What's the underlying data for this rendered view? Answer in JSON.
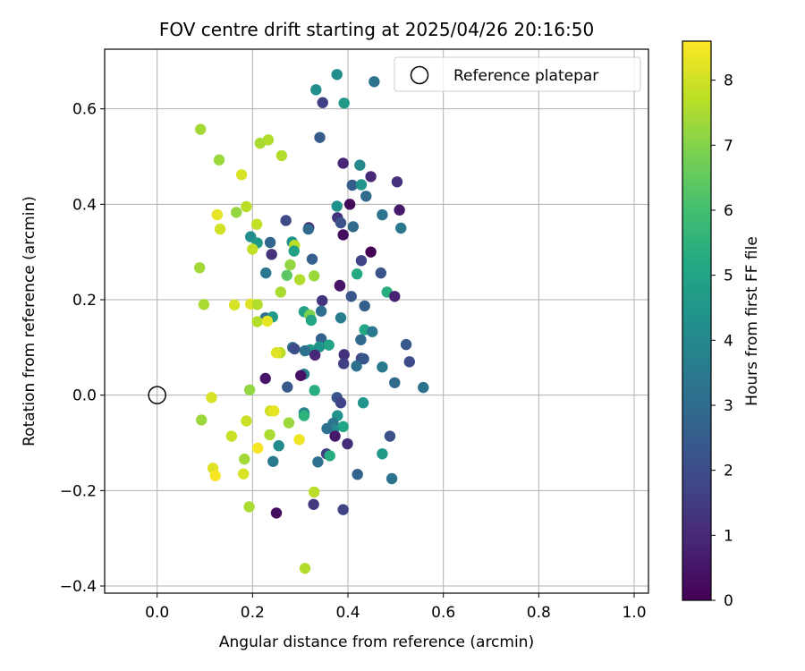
{
  "chart_data": {
    "type": "scatter",
    "title": "FOV centre drift starting at 2025/04/26 20:16:50",
    "xlabel": "Angular distance from reference (arcmin)",
    "ylabel": "Rotation from reference (arcmin)",
    "xlim": [
      -0.11,
      1.03
    ],
    "ylim": [
      -0.415,
      0.725
    ],
    "xticks": [
      0.0,
      0.2,
      0.4,
      0.6,
      0.8,
      1.0
    ],
    "xtick_labels": [
      "0.0",
      "0.2",
      "0.4",
      "0.6",
      "0.8",
      "1.0"
    ],
    "yticks": [
      -0.4,
      -0.2,
      0.0,
      0.2,
      0.4,
      0.6
    ],
    "ytick_labels": [
      "−0.4",
      "−0.2",
      "0.0",
      "0.2",
      "0.4",
      "0.6"
    ],
    "grid": true,
    "legend": {
      "placement": "top-right",
      "entries": [
        {
          "label": "Reference platepar",
          "marker": "open-circle"
        }
      ]
    },
    "reference_point": {
      "x": 0.0,
      "y": 0.0
    },
    "colorbar": {
      "label": "Hours from first FF file",
      "colormap": "viridis",
      "range": [
        0,
        8.6
      ],
      "ticks": [
        0,
        1,
        2,
        3,
        4,
        5,
        6,
        7,
        8
      ],
      "tick_labels": [
        "0",
        "1",
        "2",
        "3",
        "4",
        "5",
        "6",
        "7",
        "8"
      ]
    },
    "points": [
      {
        "x": 0.377,
        "y": 0.672,
        "h": 4.2
      },
      {
        "x": 0.455,
        "y": 0.657,
        "h": 3.3
      },
      {
        "x": 0.333,
        "y": 0.64,
        "h": 4.2
      },
      {
        "x": 0.347,
        "y": 0.613,
        "h": 1.6
      },
      {
        "x": 0.392,
        "y": 0.612,
        "h": 4.6
      },
      {
        "x": 0.341,
        "y": 0.54,
        "h": 2.5
      },
      {
        "x": 0.091,
        "y": 0.557,
        "h": 7.4
      },
      {
        "x": 0.233,
        "y": 0.535,
        "h": 7.6
      },
      {
        "x": 0.216,
        "y": 0.528,
        "h": 7.5
      },
      {
        "x": 0.13,
        "y": 0.493,
        "h": 7.3
      },
      {
        "x": 0.261,
        "y": 0.502,
        "h": 7.6
      },
      {
        "x": 0.39,
        "y": 0.486,
        "h": 0.9
      },
      {
        "x": 0.425,
        "y": 0.482,
        "h": 4.0
      },
      {
        "x": 0.177,
        "y": 0.462,
        "h": 8.1
      },
      {
        "x": 0.448,
        "y": 0.458,
        "h": 1.0
      },
      {
        "x": 0.503,
        "y": 0.447,
        "h": 1.2
      },
      {
        "x": 0.409,
        "y": 0.44,
        "h": 2.5
      },
      {
        "x": 0.428,
        "y": 0.441,
        "h": 4.5
      },
      {
        "x": 0.438,
        "y": 0.417,
        "h": 3.0
      },
      {
        "x": 0.187,
        "y": 0.395,
        "h": 7.7
      },
      {
        "x": 0.377,
        "y": 0.396,
        "h": 4.3
      },
      {
        "x": 0.404,
        "y": 0.4,
        "h": 0.2
      },
      {
        "x": 0.508,
        "y": 0.388,
        "h": 0.6
      },
      {
        "x": 0.472,
        "y": 0.378,
        "h": 3.3
      },
      {
        "x": 0.126,
        "y": 0.378,
        "h": 8.3
      },
      {
        "x": 0.166,
        "y": 0.383,
        "h": 7.2
      },
      {
        "x": 0.378,
        "y": 0.372,
        "h": 1.3
      },
      {
        "x": 0.385,
        "y": 0.361,
        "h": 2.2
      },
      {
        "x": 0.27,
        "y": 0.366,
        "h": 1.9
      },
      {
        "x": 0.209,
        "y": 0.358,
        "h": 7.8
      },
      {
        "x": 0.132,
        "y": 0.348,
        "h": 8.0
      },
      {
        "x": 0.318,
        "y": 0.351,
        "h": 0.7
      },
      {
        "x": 0.317,
        "y": 0.348,
        "h": 3.0
      },
      {
        "x": 0.411,
        "y": 0.353,
        "h": 3.0
      },
      {
        "x": 0.511,
        "y": 0.35,
        "h": 3.4
      },
      {
        "x": 0.39,
        "y": 0.336,
        "h": 0.3
      },
      {
        "x": 0.196,
        "y": 0.332,
        "h": 4.2
      },
      {
        "x": 0.21,
        "y": 0.319,
        "h": 4.6
      },
      {
        "x": 0.237,
        "y": 0.32,
        "h": 2.8
      },
      {
        "x": 0.283,
        "y": 0.321,
        "h": 4.4
      },
      {
        "x": 0.288,
        "y": 0.314,
        "h": 7.7
      },
      {
        "x": 0.2,
        "y": 0.306,
        "h": 7.8
      },
      {
        "x": 0.287,
        "y": 0.302,
        "h": 4.9
      },
      {
        "x": 0.448,
        "y": 0.3,
        "h": 0.0
      },
      {
        "x": 0.24,
        "y": 0.295,
        "h": 1.2
      },
      {
        "x": 0.325,
        "y": 0.285,
        "h": 2.6
      },
      {
        "x": 0.428,
        "y": 0.282,
        "h": 1.7
      },
      {
        "x": 0.279,
        "y": 0.273,
        "h": 7.2
      },
      {
        "x": 0.089,
        "y": 0.267,
        "h": 7.4
      },
      {
        "x": 0.228,
        "y": 0.256,
        "h": 3.4
      },
      {
        "x": 0.272,
        "y": 0.251,
        "h": 6.4
      },
      {
        "x": 0.329,
        "y": 0.25,
        "h": 7.3
      },
      {
        "x": 0.419,
        "y": 0.254,
        "h": 5.2
      },
      {
        "x": 0.469,
        "y": 0.256,
        "h": 2.2
      },
      {
        "x": 0.299,
        "y": 0.242,
        "h": 7.6
      },
      {
        "x": 0.383,
        "y": 0.229,
        "h": 0.1
      },
      {
        "x": 0.383,
        "y": 0.23,
        "h": 0.5
      },
      {
        "x": 0.259,
        "y": 0.216,
        "h": 7.5
      },
      {
        "x": 0.482,
        "y": 0.216,
        "h": 5.4
      },
      {
        "x": 0.407,
        "y": 0.207,
        "h": 2.3
      },
      {
        "x": 0.498,
        "y": 0.207,
        "h": 0.8
      },
      {
        "x": 0.346,
        "y": 0.198,
        "h": 1.3
      },
      {
        "x": 0.098,
        "y": 0.19,
        "h": 7.5
      },
      {
        "x": 0.162,
        "y": 0.189,
        "h": 8.1
      },
      {
        "x": 0.196,
        "y": 0.191,
        "h": 8.2
      },
      {
        "x": 0.21,
        "y": 0.19,
        "h": 7.6
      },
      {
        "x": 0.435,
        "y": 0.187,
        "h": 2.6
      },
      {
        "x": 0.308,
        "y": 0.175,
        "h": 4.9
      },
      {
        "x": 0.32,
        "y": 0.168,
        "h": 6.9
      },
      {
        "x": 0.344,
        "y": 0.176,
        "h": 3.1
      },
      {
        "x": 0.227,
        "y": 0.162,
        "h": 3.1
      },
      {
        "x": 0.242,
        "y": 0.164,
        "h": 4.6
      },
      {
        "x": 0.385,
        "y": 0.162,
        "h": 3.6
      },
      {
        "x": 0.21,
        "y": 0.154,
        "h": 7.6
      },
      {
        "x": 0.231,
        "y": 0.155,
        "h": 8.3
      },
      {
        "x": 0.323,
        "y": 0.157,
        "h": 5.0
      },
      {
        "x": 0.435,
        "y": 0.137,
        "h": 5.1
      },
      {
        "x": 0.451,
        "y": 0.133,
        "h": 3.4
      },
      {
        "x": 0.344,
        "y": 0.118,
        "h": 2.7
      },
      {
        "x": 0.427,
        "y": 0.116,
        "h": 2.9
      },
      {
        "x": 0.522,
        "y": 0.106,
        "h": 2.4
      },
      {
        "x": 0.284,
        "y": 0.1,
        "h": 3.0
      },
      {
        "x": 0.288,
        "y": 0.097,
        "h": 2.0
      },
      {
        "x": 0.36,
        "y": 0.105,
        "h": 5.0
      },
      {
        "x": 0.34,
        "y": 0.101,
        "h": 4.4
      },
      {
        "x": 0.321,
        "y": 0.095,
        "h": 4.6
      },
      {
        "x": 0.31,
        "y": 0.093,
        "h": 3.3
      },
      {
        "x": 0.258,
        "y": 0.089,
        "h": 7.7
      },
      {
        "x": 0.25,
        "y": 0.089,
        "h": 8.2
      },
      {
        "x": 0.331,
        "y": 0.084,
        "h": 1.0
      },
      {
        "x": 0.392,
        "y": 0.085,
        "h": 1.2
      },
      {
        "x": 0.428,
        "y": 0.077,
        "h": 1.8
      },
      {
        "x": 0.433,
        "y": 0.076,
        "h": 2.3
      },
      {
        "x": 0.529,
        "y": 0.07,
        "h": 2.0
      },
      {
        "x": 0.391,
        "y": 0.066,
        "h": 1.6
      },
      {
        "x": 0.418,
        "y": 0.061,
        "h": 3.2
      },
      {
        "x": 0.472,
        "y": 0.059,
        "h": 3.5
      },
      {
        "x": 0.308,
        "y": 0.044,
        "h": 3.7
      },
      {
        "x": 0.301,
        "y": 0.041,
        "h": 0.4
      },
      {
        "x": 0.227,
        "y": 0.035,
        "h": 0.5
      },
      {
        "x": 0.498,
        "y": 0.026,
        "h": 3.0
      },
      {
        "x": 0.558,
        "y": 0.016,
        "h": 3.3
      },
      {
        "x": 0.273,
        "y": 0.017,
        "h": 2.4
      },
      {
        "x": 0.33,
        "y": 0.01,
        "h": 5.3
      },
      {
        "x": 0.194,
        "y": 0.011,
        "h": 7.2
      },
      {
        "x": 0.377,
        "y": -0.005,
        "h": 2.2
      },
      {
        "x": 0.385,
        "y": -0.016,
        "h": 1.7
      },
      {
        "x": 0.432,
        "y": -0.016,
        "h": 4.4
      },
      {
        "x": 0.114,
        "y": -0.005,
        "h": 8.1
      },
      {
        "x": 0.237,
        "y": -0.033,
        "h": 8.0
      },
      {
        "x": 0.245,
        "y": -0.033,
        "h": 8.3
      },
      {
        "x": 0.308,
        "y": -0.037,
        "h": 3.8
      },
      {
        "x": 0.308,
        "y": -0.043,
        "h": 5.5
      },
      {
        "x": 0.378,
        "y": -0.043,
        "h": 4.3
      },
      {
        "x": 0.093,
        "y": -0.052,
        "h": 7.3
      },
      {
        "x": 0.187,
        "y": -0.054,
        "h": 7.9
      },
      {
        "x": 0.276,
        "y": -0.058,
        "h": 7.3
      },
      {
        "x": 0.369,
        "y": -0.059,
        "h": 3.4
      },
      {
        "x": 0.39,
        "y": -0.066,
        "h": 5.1
      },
      {
        "x": 0.37,
        "y": -0.073,
        "h": 4.1
      },
      {
        "x": 0.356,
        "y": -0.07,
        "h": 3.2
      },
      {
        "x": 0.373,
        "y": -0.086,
        "h": 0.6
      },
      {
        "x": 0.488,
        "y": -0.086,
        "h": 2.1
      },
      {
        "x": 0.156,
        "y": -0.086,
        "h": 7.9
      },
      {
        "x": 0.236,
        "y": -0.083,
        "h": 7.5
      },
      {
        "x": 0.298,
        "y": -0.093,
        "h": 8.4
      },
      {
        "x": 0.399,
        "y": -0.102,
        "h": 1.1
      },
      {
        "x": 0.211,
        "y": -0.111,
        "h": 8.5
      },
      {
        "x": 0.255,
        "y": -0.106,
        "h": 4.1
      },
      {
        "x": 0.355,
        "y": -0.123,
        "h": 1.6
      },
      {
        "x": 0.362,
        "y": -0.127,
        "h": 5.3
      },
      {
        "x": 0.472,
        "y": -0.123,
        "h": 4.6
      },
      {
        "x": 0.183,
        "y": -0.134,
        "h": 7.4
      },
      {
        "x": 0.243,
        "y": -0.139,
        "h": 3.5
      },
      {
        "x": 0.337,
        "y": -0.14,
        "h": 3.2
      },
      {
        "x": 0.117,
        "y": -0.153,
        "h": 8.2
      },
      {
        "x": 0.122,
        "y": -0.169,
        "h": 8.5
      },
      {
        "x": 0.181,
        "y": -0.165,
        "h": 8.1
      },
      {
        "x": 0.42,
        "y": -0.166,
        "h": 2.7
      },
      {
        "x": 0.492,
        "y": -0.175,
        "h": 3.3
      },
      {
        "x": 0.329,
        "y": -0.203,
        "h": 7.7
      },
      {
        "x": 0.328,
        "y": -0.229,
        "h": 1.4
      },
      {
        "x": 0.193,
        "y": -0.234,
        "h": 7.5
      },
      {
        "x": 0.39,
        "y": -0.24,
        "h": 1.7
      },
      {
        "x": 0.25,
        "y": -0.247,
        "h": 0.3
      },
      {
        "x": 0.31,
        "y": -0.363,
        "h": 7.6
      }
    ]
  }
}
